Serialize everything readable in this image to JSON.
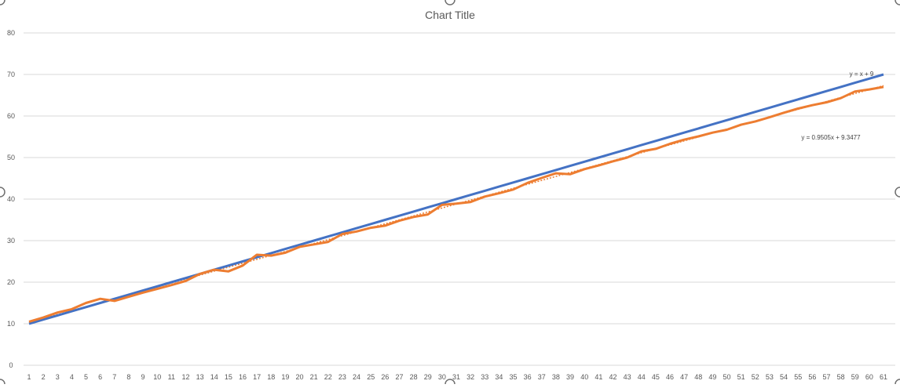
{
  "chart_data": {
    "type": "line",
    "title": "Chart Title",
    "xlabel": "",
    "ylabel": "",
    "ylim": [
      0,
      80
    ],
    "y_ticks": [
      0,
      10,
      20,
      30,
      40,
      50,
      60,
      70,
      80
    ],
    "categories": [
      "1",
      "2",
      "3",
      "4",
      "5",
      "6",
      "7",
      "8",
      "9",
      "10",
      "11",
      "12",
      "13",
      "14",
      "15",
      "16",
      "17",
      "18",
      "19",
      "20",
      "21",
      "22",
      "23",
      "24",
      "25",
      "26",
      "27",
      "28",
      "29",
      "30",
      "31",
      "32",
      "33",
      "34",
      "35",
      "36",
      "37",
      "38",
      "39",
      "40",
      "41",
      "42",
      "43",
      "44",
      "45",
      "46",
      "47",
      "48",
      "49",
      "50",
      "51",
      "52",
      "53",
      "54",
      "55",
      "56",
      "57",
      "58",
      "59",
      "60",
      "61"
    ],
    "grid": true,
    "legend": "none",
    "series": [
      {
        "color": "#4472C4",
        "values": [
          10,
          11,
          12,
          13,
          14,
          15,
          16,
          17,
          18,
          19,
          20,
          21,
          22,
          23,
          24,
          25,
          26,
          27,
          28,
          29,
          30,
          31,
          32,
          33,
          34,
          35,
          36,
          37,
          38,
          39,
          40,
          41,
          42,
          43,
          44,
          45,
          46,
          47,
          48,
          49,
          50,
          51,
          52,
          53,
          54,
          55,
          56,
          57,
          58,
          59,
          60,
          61,
          62,
          63,
          64,
          65,
          66,
          67,
          68,
          69,
          70
        ],
        "trendline": {
          "equation": "y = x + 9",
          "dashed": false
        }
      },
      {
        "color": "#ED7D31",
        "values": [
          10.5,
          11.5,
          12.7,
          13.5,
          15,
          16,
          15.5,
          16.5,
          17.5,
          18.4,
          19.3,
          20.3,
          22.0,
          23.0,
          22.6,
          24.0,
          26.6,
          26.4,
          27.1,
          28.5,
          29.1,
          29.7,
          31.6,
          32.2,
          33.1,
          33.6,
          34.8,
          35.7,
          36.3,
          38.6,
          38.9,
          39.3,
          40.6,
          41.4,
          42.3,
          43.9,
          45.1,
          46.2,
          46.0,
          47.2,
          48.1,
          49.1,
          50.0,
          51.5,
          52.1,
          53.3,
          54.3,
          55.1,
          56.0,
          56.7,
          57.9,
          58.7,
          59.7,
          60.8,
          61.8,
          62.6,
          63.3,
          64.3,
          65.9,
          66.4,
          67.0
        ],
        "trendline": {
          "equation": "y = 0.9505x + 9.3477",
          "dashed": true
        }
      }
    ]
  }
}
